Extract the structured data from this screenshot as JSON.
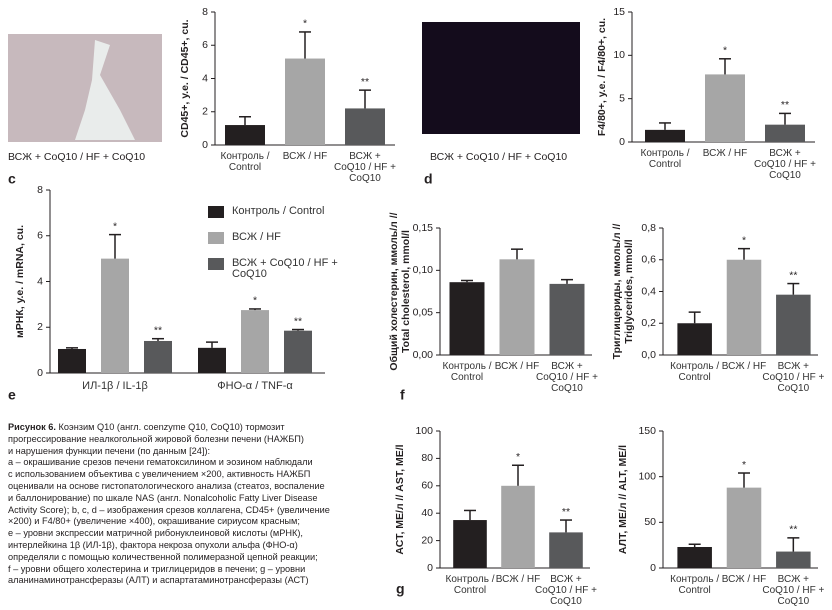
{
  "chart_data": [
    {
      "type": "bar",
      "ylabel": "CD45+, у.е. / CD45+, cu.",
      "categories": [
        "Контроль / Control",
        "ВСЖ / HF",
        "ВСЖ + CoQ10 / HF + CoQ10"
      ],
      "values": [
        1.2,
        5.2,
        2.2
      ],
      "errors": [
        0.5,
        1.6,
        1.1
      ],
      "annotations": [
        null,
        "*",
        "**"
      ],
      "colors": [
        "#231f20",
        "#a6a6a6",
        "#58595b"
      ],
      "ylim": [
        0,
        8
      ],
      "yticks": [
        0,
        2,
        4,
        6,
        8
      ]
    },
    {
      "type": "bar",
      "ylabel": "F4/80+, у.е. / F4/80+, cu.",
      "categories": [
        "Контроль / Control",
        "ВСЖ / HF",
        "ВСЖ + CoQ10 / HF + CoQ10"
      ],
      "values": [
        1.4,
        7.8,
        2.0
      ],
      "errors": [
        0.8,
        1.8,
        1.3
      ],
      "annotations": [
        null,
        "*",
        "**"
      ],
      "colors": [
        "#231f20",
        "#a6a6a6",
        "#58595b"
      ],
      "ylim": [
        0,
        15
      ],
      "yticks": [
        0,
        5,
        10,
        15
      ]
    },
    {
      "type": "grouped_bar",
      "ylabel": "мРНК, у.е. / mRNA, cu.",
      "categories": [
        "ИЛ-1β / IL-1β",
        "ФНО-α / TNF-α"
      ],
      "series": [
        {
          "name": "Контроль / Control",
          "color": "#231f20",
          "values": [
            1.05,
            1.1
          ],
          "errors": [
            0.05,
            0.25
          ],
          "annotations": [
            null,
            null
          ]
        },
        {
          "name": "ВСЖ / HF",
          "color": "#a6a6a6",
          "values": [
            5.0,
            2.75
          ],
          "errors": [
            1.05,
            0.05
          ],
          "annotations": [
            "*",
            "*"
          ]
        },
        {
          "name": "ВСЖ + CoQ10 / HF + CoQ10",
          "color": "#58595b",
          "values": [
            1.4,
            1.85
          ],
          "errors": [
            0.1,
            0.05
          ],
          "annotations": [
            "**",
            "**"
          ]
        }
      ],
      "ylim": [
        0,
        8
      ],
      "yticks": [
        0,
        2,
        4,
        6,
        8
      ],
      "legend": "top-right"
    },
    {
      "type": "bar",
      "ylabel": [
        "Общий холестерин, ммоль/л //",
        "Total cholesterol, mmol/l"
      ],
      "categories": [
        "Контроль / Control",
        "ВСЖ / HF",
        "ВСЖ + CoQ10 / HF + CoQ10"
      ],
      "values": [
        0.086,
        0.113,
        0.084
      ],
      "errors": [
        0.002,
        0.012,
        0.005
      ],
      "annotations": [
        null,
        null,
        null
      ],
      "colors": [
        "#231f20",
        "#a6a6a6",
        "#58595b"
      ],
      "ylim": [
        0,
        0.15
      ],
      "yticks": [
        {
          "value": 0,
          "label": "0,00"
        },
        {
          "value": 0.05,
          "label": "0,05"
        },
        {
          "value": 0.1,
          "label": "0,10"
        },
        {
          "value": 0.15,
          "label": "0,15"
        }
      ]
    },
    {
      "type": "bar",
      "ylabel": [
        "Триглицериды, ммоль/л //",
        "Triglycerides, mmol/l"
      ],
      "categories": [
        "Контроль / Control",
        "ВСЖ / HF",
        "ВСЖ + CoQ10 / HF + CoQ10"
      ],
      "values": [
        0.2,
        0.6,
        0.38
      ],
      "errors": [
        0.07,
        0.07,
        0.07
      ],
      "annotations": [
        null,
        "*",
        "**"
      ],
      "colors": [
        "#231f20",
        "#a6a6a6",
        "#58595b"
      ],
      "ylim": [
        0,
        0.8
      ],
      "yticks": [
        {
          "value": 0,
          "label": "0,0"
        },
        {
          "value": 0.2,
          "label": "0,2"
        },
        {
          "value": 0.4,
          "label": "0,4"
        },
        {
          "value": 0.6,
          "label": "0,6"
        },
        {
          "value": 0.8,
          "label": "0,8"
        }
      ]
    },
    {
      "type": "bar",
      "ylabel": [
        "АСТ, МЕ/л // AST, МЕ/l"
      ],
      "categories": [
        "Контроль / Control",
        "ВСЖ / HF",
        "ВСЖ + CoQ10 / HF + CoQ10"
      ],
      "values": [
        35,
        60,
        26
      ],
      "errors": [
        7,
        15,
        9
      ],
      "annotations": [
        null,
        "*",
        "**"
      ],
      "colors": [
        "#231f20",
        "#a6a6a6",
        "#58595b"
      ],
      "ylim": [
        0,
        100
      ],
      "yticks": [
        0,
        20,
        40,
        60,
        80,
        100
      ]
    },
    {
      "type": "bar",
      "ylabel": [
        "АЛТ, МЕ/л // ALT, МЕ/l"
      ],
      "categories": [
        "Контроль / Control",
        "ВСЖ / HF",
        "ВСЖ + CoQ10 / HF + CoQ10"
      ],
      "values": [
        23,
        88,
        18
      ],
      "errors": [
        3,
        16,
        15
      ],
      "annotations": [
        null,
        "*",
        "**"
      ],
      "colors": [
        "#231f20",
        "#a6a6a6",
        "#58595b"
      ],
      "ylim": [
        0,
        150
      ],
      "yticks": [
        0,
        50,
        100,
        150
      ]
    }
  ],
  "panels": [
    "c",
    "d",
    "e",
    "f",
    "g"
  ],
  "image_captions": [
    "ВСЖ + CoQ10 / HF + CoQ10",
    "ВСЖ + CoQ10 / HF + CoQ10"
  ],
  "caption": {
    "label": "Рисунок 6.",
    "lines": [
      "Коэнзим Q10 (англ. coenzyme Q10, CoQ10) тормозит",
      "прогрессирование неалкогольной жировой болезни печени (НАЖБП)",
      "и нарушения функции печени (по данным [24]):",
      "а – окрашивание срезов печени гематоксилином и эозином наблюдали",
      "с использованием объектива с увеличением ×200, активность НАЖБП",
      "оценивали на основе гистопатологического анализа (стеатоз, воспаление",
      "и баллонирование) по шкале NAS (англ. Nonalcoholic Fatty Liver Disease",
      "Activity Score); b, c, d – изображения срезов коллагена, CD45+ (увеличение",
      "×200) и F4/80+ (увеличение ×400), окрашивание сириусом красным;",
      "е – уровни экспрессии матричной рибонуклеиновой кислоты (мРНК),",
      "интерлейкина 1β (ИЛ-1β), фактора некроза опухоли альфа (ФНО-α)",
      "определяли с помощью количественной полимеразной цепной реакции;",
      "f – уровни общего холестерина и триглицеридов в печени; g – уровни",
      "аланинаминотрансферазы (АЛТ) и аспартатаминотрансферазы (АСТ)"
    ]
  }
}
